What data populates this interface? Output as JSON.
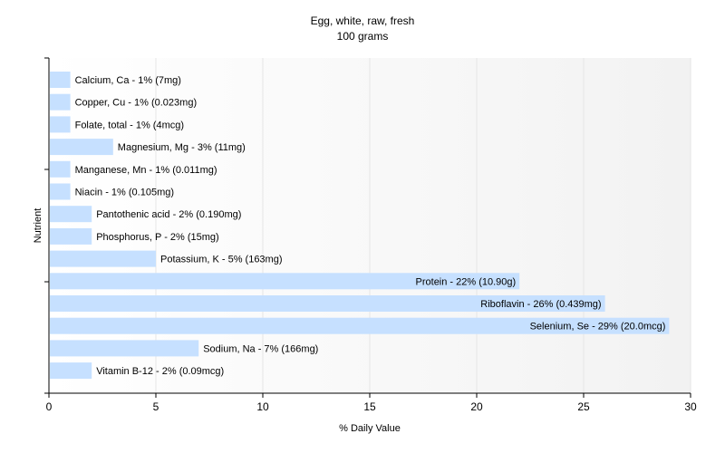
{
  "chart_data": {
    "type": "bar",
    "orientation": "horizontal",
    "title": "Egg, white, raw, fresh",
    "subtitle": "100 grams",
    "xlabel": "% Daily Value",
    "ylabel": "Nutrient",
    "xlim": [
      0,
      30
    ],
    "xticks": [
      0,
      5,
      10,
      15,
      20,
      25,
      30
    ],
    "grid": true,
    "bar_color": "#c6e0ff",
    "categories": [
      "Calcium, Ca",
      "Copper, Cu",
      "Folate, total",
      "Magnesium, Mg",
      "Manganese, Mn",
      "Niacin",
      "Pantothenic acid",
      "Phosphorus, P",
      "Potassium, K",
      "Protein",
      "Riboflavin",
      "Selenium, Se",
      "Sodium, Na",
      "Vitamin B-12"
    ],
    "values": [
      1,
      1,
      1,
      3,
      1,
      1,
      2,
      2,
      5,
      22,
      26,
      29,
      7,
      2
    ],
    "labels": [
      "Calcium, Ca - 1% (7mg)",
      "Copper, Cu - 1% (0.023mg)",
      "Folate, total - 1% (4mcg)",
      "Magnesium, Mg - 3% (11mg)",
      "Manganese, Mn - 1% (0.011mg)",
      "Niacin - 1% (0.105mg)",
      "Pantothenic acid - 2% (0.190mg)",
      "Phosphorus, P - 2% (15mg)",
      "Potassium, K - 5% (163mg)",
      "Protein - 22% (10.90g)",
      "Riboflavin - 26% (0.439mg)",
      "Selenium, Se - 29% (20.0mcg)",
      "Sodium, Na - 7% (166mg)",
      "Vitamin B-12 - 2% (0.09mcg)"
    ]
  }
}
